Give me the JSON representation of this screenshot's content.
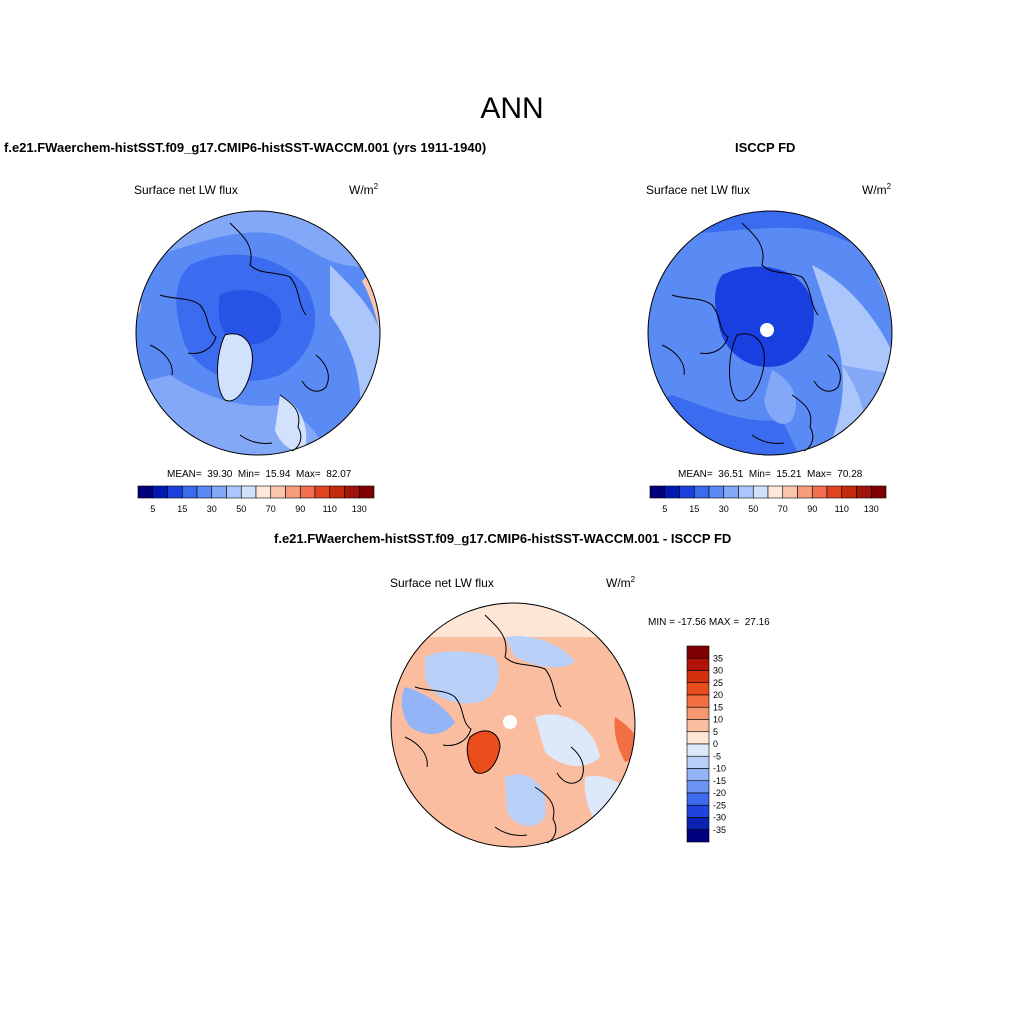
{
  "title": "ANN",
  "units": {
    "base": "W/m",
    "exp": "2"
  },
  "panels": {
    "test": {
      "title": "f.e21.FWaerchem-histSST.f09_g17.CMIP6-histSST-WACCM.001 (yrs 1911-1940)",
      "variable": "Surface net LW flux",
      "mean": "39.30",
      "min": "15.94",
      "max": "82.07"
    },
    "ref": {
      "title": "ISCCP FD",
      "variable": "Surface net LW flux",
      "mean": "36.51",
      "min": "15.21",
      "max": "70.28"
    },
    "diff": {
      "title": "f.e21.FWaerchem-histSST.f09_g17.CMIP6-histSST-WACCM.001 - ISCCP FD",
      "variable": "Surface net LW flux",
      "min": "-17.56",
      "max": "27.16"
    }
  },
  "colorbar_main": {
    "tick_labels": [
      "5",
      "15",
      "30",
      "50",
      "70",
      "90",
      "110",
      "130"
    ],
    "colors": [
      "#00007f",
      "#0019b2",
      "#1a3fe0",
      "#3b6cf0",
      "#5a8af4",
      "#82a8f7",
      "#aac6fa",
      "#d2e2fd",
      "#fde8dc",
      "#fbc6ad",
      "#f79d7c",
      "#f2704f",
      "#e4431f",
      "#c52a0c",
      "#a0140a",
      "#7f0000"
    ]
  },
  "colorbar_diff": {
    "tick_labels": [
      "35",
      "30",
      "25",
      "20",
      "15",
      "10",
      "5",
      "0",
      "-5",
      "-10",
      "-15",
      "-20",
      "-25",
      "-30",
      "-35"
    ],
    "colors": [
      "#7f0000",
      "#b01408",
      "#d3300e",
      "#ea4d1c",
      "#f26e43",
      "#f79772",
      "#fbbd9f",
      "#fde6d6",
      "#dde9fb",
      "#b9d0f9",
      "#93b4f6",
      "#6b93f2",
      "#3f6aec",
      "#1f44db",
      "#0a22b0",
      "#00007f"
    ]
  }
}
